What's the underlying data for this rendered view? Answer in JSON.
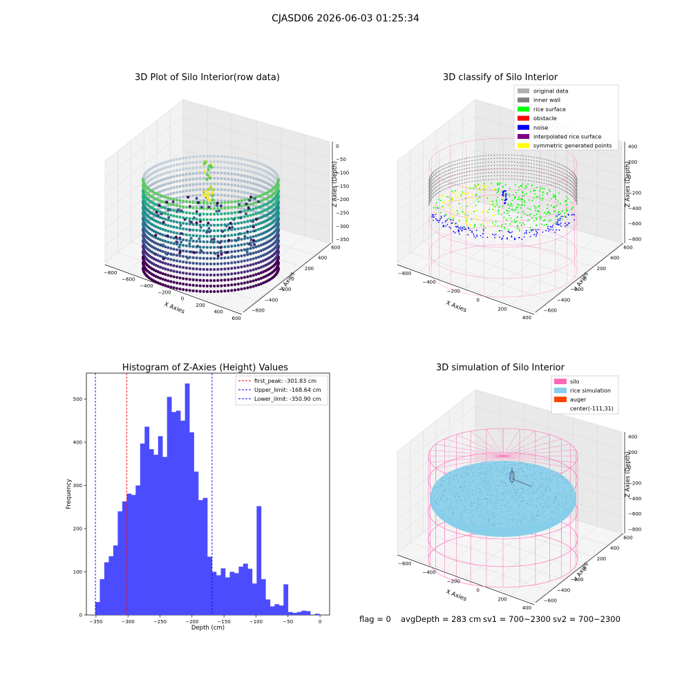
{
  "figure": {
    "suptitle": "CJASD06 2026-06-03 01:25:34",
    "footer": {
      "flag": "flag = 0",
      "avg_depth": "avgDepth = 283 cm",
      "sv1": "sv1 = 700~2300",
      "sv2": "sv2 = 700~2300"
    }
  },
  "colors": {
    "histogram_bar": "#4c4cff",
    "first_peak_line": "#ff0000",
    "limit_lines": "#0000ff",
    "original_data": "#b0b0b0",
    "inner_wall": "#808080",
    "rice_surface": "#00ff00",
    "obstacle": "#ff0000",
    "noise": "#0000ff",
    "interpolated_rice_surface": "#800080",
    "symmetric_generated_points": "#ffff00",
    "silo": "#ff69b4",
    "rice_simulation": "#87ceeb",
    "auger": "#ff4500"
  },
  "chart_data": [
    {
      "type": "scatter",
      "title": "3D Plot of Silo Interior(row data)",
      "xlabel": "X Axies",
      "ylabel": "Y Axies",
      "zlabel": "Z Axies (Depth)",
      "xticks": [
        "−800",
        "−600",
        "−400",
        "−200",
        "0",
        "200",
        "400",
        "600"
      ],
      "yticks": [
        "600",
        "400",
        "200",
        "0",
        "−200",
        "−400",
        "−600"
      ],
      "zticks": [
        "0",
        "−50",
        "−100",
        "−150",
        "−200",
        "−250",
        "−300",
        "−350"
      ],
      "xlim": [
        -850,
        650
      ],
      "ylim": [
        -650,
        650
      ],
      "zlim": [
        -380,
        10
      ],
      "colormap": "viridis"
    },
    {
      "type": "scatter",
      "title": "3D classify of Silo Interior",
      "xlabel": "X Axies",
      "ylabel": "Y Axies",
      "zlabel": "Z Axies (Depth)",
      "xticks": [
        "−600",
        "−400",
        "−200",
        "0",
        "200",
        "400"
      ],
      "yticks": [
        "600",
        "400",
        "200",
        "0",
        "−200",
        "−400",
        "−600"
      ],
      "zticks": [
        "400",
        "200",
        "0",
        "−200",
        "−400",
        "−600",
        "−800"
      ],
      "legend": [
        {
          "label": "original data",
          "color_key": "original_data"
        },
        {
          "label": "inner wall",
          "color_key": "inner_wall"
        },
        {
          "label": "rice surface",
          "color_key": "rice_surface"
        },
        {
          "label": "obstacle",
          "color_key": "obstacle"
        },
        {
          "label": "noise",
          "color_key": "noise"
        },
        {
          "label": "interpolated rice surface",
          "color_key": "interpolated_rice_surface"
        },
        {
          "label": "symmetric generated points",
          "color_key": "symmetric_generated_points"
        }
      ],
      "legend_loc": "upper right"
    },
    {
      "type": "bar",
      "title": "Histogram of Z-Axies (Height) Values",
      "xlabel": "Depth (cm)",
      "ylabel": "Frequency",
      "xlim": [
        -365,
        15
      ],
      "ylim": [
        0,
        560
      ],
      "xticks": [
        -350,
        -300,
        -250,
        -200,
        -150,
        -100,
        -50,
        0
      ],
      "yticks": [
        0,
        100,
        200,
        300,
        400,
        500
      ],
      "bin_start": -351,
      "bin_width": 7,
      "values": [
        30,
        83,
        122,
        136,
        161,
        240,
        263,
        281,
        278,
        300,
        397,
        436,
        384,
        371,
        414,
        366,
        505,
        470,
        473,
        450,
        536,
        423,
        332,
        266,
        271,
        135,
        100,
        92,
        108,
        87,
        100,
        97,
        112,
        119,
        107,
        73,
        252,
        83,
        36,
        20,
        25,
        22,
        71,
        7,
        5,
        7,
        10,
        9,
        0,
        3
      ],
      "vlines": [
        {
          "x": -301.83,
          "label": "first_peak: -301.83 cm",
          "color_key": "first_peak_line"
        },
        {
          "x": -168.64,
          "label": "Upper_limit: -168.64 cm",
          "color_key": "limit_lines"
        },
        {
          "x": -350.9,
          "label": "Lower_limit: -350.90 cm",
          "color_key": "limit_lines"
        }
      ],
      "legend_loc": "upper right"
    },
    {
      "type": "scatter",
      "title": "3D simulation of Silo Interior",
      "xlabel": "X Axies",
      "ylabel": "Y Axies",
      "zlabel": "Z Axies (Depth)",
      "xticks": [
        "−600",
        "−400",
        "−200",
        "0",
        "200",
        "400"
      ],
      "yticks": [
        "600",
        "400",
        "200",
        "0",
        "−200",
        "−400",
        "−600"
      ],
      "zticks": [
        "400",
        "200",
        "0",
        "−200",
        "−400",
        "−600",
        "−800"
      ],
      "legend": [
        {
          "label": "silo",
          "color_key": "silo"
        },
        {
          "label": "rice simulation",
          "color_key": "rice_simulation"
        },
        {
          "label": "auger",
          "color_key": "auger"
        },
        {
          "label": "center(-111,31)",
          "color_key": ""
        }
      ],
      "legend_loc": "upper right"
    }
  ]
}
